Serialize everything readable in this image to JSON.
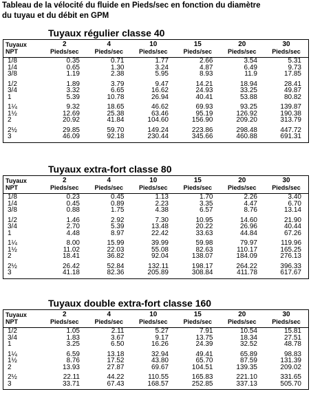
{
  "title_line1": "Tableau de la vélocité du fluide en Pieds/sec en fonction du diamètre",
  "title_line2": "du tuyau et du débit en GPM",
  "header": {
    "pipe_line1": "Tuyaux",
    "pipe_line2": "NPT",
    "flows": [
      "2",
      "4",
      "10",
      "15",
      "20",
      "30"
    ],
    "unit": "Pieds/sec"
  },
  "tables": [
    {
      "title": "Tuyaux régulier classe 40",
      "rows": [
        {
          "pipe": "1/8",
          "values": [
            "0.35",
            "0.71",
            "1.77",
            "2.66",
            "3.54",
            "5.31"
          ]
        },
        {
          "pipe": "1/4",
          "values": [
            "0.65",
            "1.30",
            "3.24",
            "4.87",
            "6.49",
            "9.73"
          ]
        },
        {
          "pipe": "3/8",
          "values": [
            "1.19",
            "2.38",
            "5.95",
            "8.93",
            "11.9",
            "17.85"
          ]
        },
        {
          "pipe": "1/2",
          "values": [
            "1.89",
            "3.79",
            "9.47",
            "14.21",
            "18.94",
            "28.41"
          ]
        },
        {
          "pipe": "3/4",
          "values": [
            "3.32",
            "6.65",
            "16.62",
            "24.93",
            "33.25",
            "49.87"
          ]
        },
        {
          "pipe": "1",
          "values": [
            "5.39",
            "10.78",
            "26.94",
            "40.41",
            "53.88",
            "80.82"
          ]
        },
        {
          "pipe": "1¼",
          "values": [
            "9.32",
            "18.65",
            "46.62",
            "69.93",
            "93.25",
            "139.87"
          ]
        },
        {
          "pipe": "1½",
          "values": [
            "12.69",
            "25.38",
            "63.46",
            "95.19",
            "126.92",
            "190.38"
          ]
        },
        {
          "pipe": "2",
          "values": [
            "20.92",
            "41.84",
            "104.60",
            "156.90",
            "209.20",
            "313.79"
          ]
        },
        {
          "pipe": "2½",
          "values": [
            "29.85",
            "59.70",
            "149.24",
            "223.86",
            "298.48",
            "447.72"
          ]
        },
        {
          "pipe": "3",
          "values": [
            "46.09",
            "92.18",
            "230.44",
            "345.66",
            "460.88",
            "691.31"
          ]
        }
      ]
    },
    {
      "title": "Tuyaux extra-fort classe 80",
      "rows": [
        {
          "pipe": "1/8",
          "values": [
            "0.23",
            "0.45",
            "1.13",
            "1.70",
            "2.26",
            "3.40"
          ]
        },
        {
          "pipe": "1/4",
          "values": [
            "0.45",
            "0.89",
            "2.23",
            "3.35",
            "4.47",
            "6.70"
          ]
        },
        {
          "pipe": "3/8",
          "values": [
            "0.88",
            "1.75",
            "4.38",
            "6.57",
            "8.76",
            "13.14"
          ]
        },
        {
          "pipe": "1/2",
          "values": [
            "1.46",
            "2.92",
            "7.30",
            "10.95",
            "14.60",
            "21.90"
          ]
        },
        {
          "pipe": "3/4",
          "values": [
            "2.70",
            "5.39",
            "13.48",
            "20.22",
            "26.96",
            "40.44"
          ]
        },
        {
          "pipe": "1",
          "values": [
            "4.48",
            "8.97",
            "22.42",
            "33.63",
            "44.84",
            "67.26"
          ]
        },
        {
          "pipe": "1¼",
          "values": [
            "8.00",
            "15.99",
            "39.99",
            "59.98",
            "79.97",
            "119.96"
          ]
        },
        {
          "pipe": "1½",
          "values": [
            "11.02",
            "22.03",
            "55.08",
            "82.63",
            "110.17",
            "165.25"
          ]
        },
        {
          "pipe": "2",
          "values": [
            "18.41",
            "36.82",
            "92.04",
            "138.07",
            "184.09",
            "276.13"
          ]
        },
        {
          "pipe": "2½",
          "values": [
            "26.42",
            "52.84",
            "132.11",
            "198.17",
            "264.22",
            "396.33"
          ]
        },
        {
          "pipe": "3",
          "values": [
            "41.18",
            "82.36",
            "205.89",
            "308.84",
            "411.78",
            "617.67"
          ]
        }
      ]
    },
    {
      "title": "Tuyaux double extra-fort classe 160",
      "rows": [
        {
          "pipe": "1/2",
          "values": [
            "1.05",
            "2.11",
            "5.27",
            "7.91",
            "10.54",
            "15.81"
          ]
        },
        {
          "pipe": "3/4",
          "values": [
            "1.83",
            "3.67",
            "9.17",
            "13.75",
            "18.34",
            "27.51"
          ]
        },
        {
          "pipe": "1",
          "values": [
            "3.25",
            "6.50",
            "16.26",
            "24.39",
            "32.52",
            "48.78"
          ]
        },
        {
          "pipe": "1¼",
          "values": [
            "6.59",
            "13.18",
            "32.94",
            "49.41",
            "65.89",
            "98.83"
          ]
        },
        {
          "pipe": "1½",
          "values": [
            "8.76",
            "17.52",
            "43.80",
            "65.70",
            "87.59",
            "131.39"
          ]
        },
        {
          "pipe": "2",
          "values": [
            "13.93",
            "27.87",
            "69.67",
            "104.51",
            "139.35",
            "209.02"
          ]
        },
        {
          "pipe": "2½",
          "values": [
            "22.11",
            "44.22",
            "110.55",
            "165.83",
            "221.10",
            "331.65"
          ]
        },
        {
          "pipe": "3",
          "values": [
            "33.71",
            "67.43",
            "168.57",
            "252.85",
            "337.13",
            "505.70"
          ]
        }
      ]
    }
  ]
}
